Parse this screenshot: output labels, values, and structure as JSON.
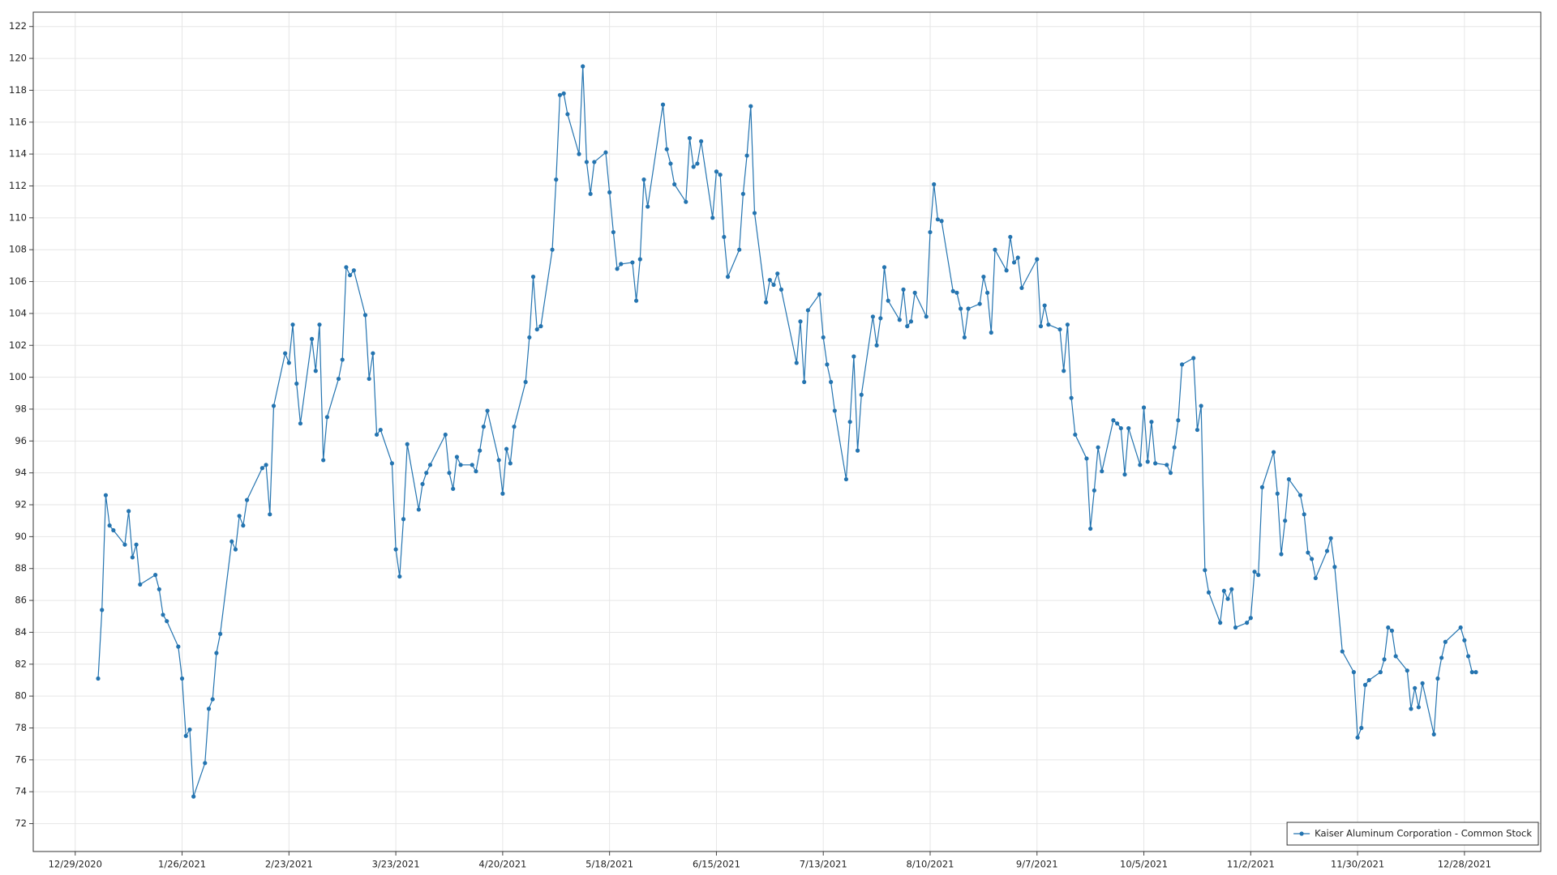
{
  "chart_data": {
    "type": "line",
    "x": [
      "1/4/2021",
      "1/5/2021",
      "1/6/2021",
      "1/7/2021",
      "1/8/2021",
      "1/11/2021",
      "1/12/2021",
      "1/13/2021",
      "1/14/2021",
      "1/15/2021",
      "1/19/2021",
      "1/20/2021",
      "1/21/2021",
      "1/22/2021",
      "1/25/2021",
      "1/26/2021",
      "1/27/2021",
      "1/28/2021",
      "1/29/2021",
      "2/1/2021",
      "2/2/2021",
      "2/3/2021",
      "2/4/2021",
      "2/5/2021",
      "2/8/2021",
      "2/9/2021",
      "2/10/2021",
      "2/11/2021",
      "2/12/2021",
      "2/16/2021",
      "2/17/2021",
      "2/18/2021",
      "2/19/2021",
      "2/22/2021",
      "2/23/2021",
      "2/24/2021",
      "2/25/2021",
      "2/26/2021",
      "3/1/2021",
      "3/2/2021",
      "3/3/2021",
      "3/4/2021",
      "3/5/2021",
      "3/8/2021",
      "3/9/2021",
      "3/10/2021",
      "3/11/2021",
      "3/12/2021",
      "3/15/2021",
      "3/16/2021",
      "3/17/2021",
      "3/18/2021",
      "3/19/2021",
      "3/22/2021",
      "3/23/2021",
      "3/24/2021",
      "3/25/2021",
      "3/26/2021",
      "3/29/2021",
      "3/30/2021",
      "3/31/2021",
      "4/1/2021",
      "4/5/2021",
      "4/6/2021",
      "4/7/2021",
      "4/8/2021",
      "4/9/2021",
      "4/12/2021",
      "4/13/2021",
      "4/14/2021",
      "4/15/2021",
      "4/16/2021",
      "4/19/2021",
      "4/20/2021",
      "4/21/2021",
      "4/22/2021",
      "4/23/2021",
      "4/26/2021",
      "4/27/2021",
      "4/28/2021",
      "4/29/2021",
      "4/30/2021",
      "5/3/2021",
      "5/4/2021",
      "5/5/2021",
      "5/6/2021",
      "5/7/2021",
      "5/10/2021",
      "5/11/2021",
      "5/12/2021",
      "5/13/2021",
      "5/14/2021",
      "5/17/2021",
      "5/18/2021",
      "5/19/2021",
      "5/20/2021",
      "5/21/2021",
      "5/24/2021",
      "5/25/2021",
      "5/26/2021",
      "5/27/2021",
      "5/28/2021",
      "6/1/2021",
      "6/2/2021",
      "6/3/2021",
      "6/4/2021",
      "6/7/2021",
      "6/8/2021",
      "6/9/2021",
      "6/10/2021",
      "6/11/2021",
      "6/14/2021",
      "6/15/2021",
      "6/16/2021",
      "6/17/2021",
      "6/18/2021",
      "6/21/2021",
      "6/22/2021",
      "6/23/2021",
      "6/24/2021",
      "6/25/2021",
      "6/28/2021",
      "6/29/2021",
      "6/30/2021",
      "7/1/2021",
      "7/2/2021",
      "7/6/2021",
      "7/7/2021",
      "7/8/2021",
      "7/9/2021",
      "7/12/2021",
      "7/13/2021",
      "7/14/2021",
      "7/15/2021",
      "7/16/2021",
      "7/19/2021",
      "7/20/2021",
      "7/21/2021",
      "7/22/2021",
      "7/23/2021",
      "7/26/2021",
      "7/27/2021",
      "7/28/2021",
      "7/29/2021",
      "7/30/2021",
      "8/2/2021",
      "8/3/2021",
      "8/4/2021",
      "8/5/2021",
      "8/6/2021",
      "8/9/2021",
      "8/10/2021",
      "8/11/2021",
      "8/12/2021",
      "8/13/2021",
      "8/16/2021",
      "8/17/2021",
      "8/18/2021",
      "8/19/2021",
      "8/20/2021",
      "8/23/2021",
      "8/24/2021",
      "8/25/2021",
      "8/26/2021",
      "8/27/2021",
      "8/30/2021",
      "8/31/2021",
      "9/1/2021",
      "9/2/2021",
      "9/3/2021",
      "9/7/2021",
      "9/8/2021",
      "9/9/2021",
      "9/10/2021",
      "9/13/2021",
      "9/14/2021",
      "9/15/2021",
      "9/16/2021",
      "9/17/2021",
      "9/20/2021",
      "9/21/2021",
      "9/22/2021",
      "9/23/2021",
      "9/24/2021",
      "9/27/2021",
      "9/28/2021",
      "9/29/2021",
      "9/30/2021",
      "10/1/2021",
      "10/4/2021",
      "10/5/2021",
      "10/6/2021",
      "10/7/2021",
      "10/8/2021",
      "10/11/2021",
      "10/12/2021",
      "10/13/2021",
      "10/14/2021",
      "10/15/2021",
      "10/18/2021",
      "10/19/2021",
      "10/20/2021",
      "10/21/2021",
      "10/22/2021",
      "10/25/2021",
      "10/26/2021",
      "10/27/2021",
      "10/28/2021",
      "10/29/2021",
      "11/1/2021",
      "11/2/2021",
      "11/3/2021",
      "11/4/2021",
      "11/5/2021",
      "11/8/2021",
      "11/9/2021",
      "11/10/2021",
      "11/11/2021",
      "11/12/2021",
      "11/15/2021",
      "11/16/2021",
      "11/17/2021",
      "11/18/2021",
      "11/19/2021",
      "11/22/2021",
      "11/23/2021",
      "11/24/2021",
      "11/26/2021",
      "11/29/2021",
      "11/30/2021",
      "12/1/2021",
      "12/2/2021",
      "12/3/2021",
      "12/6/2021",
      "12/7/2021",
      "12/8/2021",
      "12/9/2021",
      "12/10/2021",
      "12/13/2021",
      "12/14/2021",
      "12/15/2021",
      "12/16/2021",
      "12/17/2021",
      "12/20/2021",
      "12/21/2021",
      "12/22/2021",
      "12/23/2021",
      "12/27/2021",
      "12/28/2021",
      "12/29/2021",
      "12/30/2021",
      "12/31/2021"
    ],
    "series": [
      {
        "name": "Kaiser Aluminum Corporation - Common Stock",
        "color": "#2474b0",
        "values": [
          81.1,
          85.4,
          92.6,
          90.7,
          90.4,
          89.5,
          91.6,
          88.7,
          89.5,
          87.0,
          87.6,
          86.7,
          85.1,
          84.7,
          83.1,
          81.1,
          77.5,
          77.9,
          73.7,
          75.8,
          79.2,
          79.8,
          82.7,
          83.9,
          89.7,
          89.2,
          91.3,
          90.7,
          92.3,
          94.3,
          94.5,
          91.4,
          98.2,
          101.5,
          100.9,
          103.3,
          99.6,
          97.1,
          102.4,
          100.4,
          103.3,
          94.8,
          97.5,
          99.9,
          101.1,
          106.9,
          106.4,
          106.7,
          103.9,
          99.9,
          101.5,
          96.4,
          96.7,
          94.6,
          89.2,
          87.5,
          91.1,
          95.8,
          91.7,
          93.3,
          94.0,
          94.5,
          96.4,
          94.0,
          93.0,
          95.0,
          94.5,
          94.5,
          94.1,
          95.4,
          96.9,
          97.9,
          94.8,
          92.7,
          95.5,
          94.6,
          96.9,
          99.7,
          102.5,
          106.3,
          103.0,
          103.2,
          108.0,
          112.4,
          117.7,
          117.8,
          116.5,
          114.0,
          119.5,
          113.5,
          111.5,
          113.5,
          114.1,
          111.6,
          109.1,
          106.8,
          107.1,
          107.2,
          104.8,
          107.4,
          112.4,
          110.7,
          117.1,
          114.3,
          113.4,
          112.1,
          111.0,
          115.0,
          113.2,
          113.4,
          114.8,
          110.0,
          112.9,
          112.7,
          108.8,
          106.3,
          108.0,
          111.5,
          113.9,
          117.0,
          110.3,
          104.7,
          106.1,
          105.8,
          106.5,
          105.5,
          100.9,
          103.5,
          99.7,
          104.2,
          105.2,
          102.5,
          100.8,
          99.7,
          97.9,
          93.6,
          97.2,
          101.3,
          95.4,
          98.9,
          103.8,
          102.0,
          103.7,
          106.9,
          104.8,
          103.6,
          105.5,
          103.2,
          103.5,
          105.3,
          103.8,
          109.1,
          112.1,
          109.9,
          109.8,
          105.4,
          105.3,
          104.3,
          102.5,
          104.3,
          104.6,
          106.3,
          105.3,
          102.8,
          108.0,
          106.7,
          108.8,
          107.2,
          107.5,
          105.6,
          107.4,
          103.2,
          104.5,
          103.3,
          103.0,
          100.4,
          103.3,
          98.7,
          96.4,
          94.9,
          90.5,
          92.9,
          95.6,
          94.1,
          97.3,
          97.1,
          96.8,
          93.9,
          96.8,
          94.5,
          98.1,
          94.7,
          97.2,
          94.6,
          94.5,
          94.0,
          95.6,
          97.3,
          100.8,
          101.2,
          96.7,
          98.2,
          87.9,
          86.5,
          84.6,
          86.6,
          86.1,
          86.7,
          84.3,
          84.6,
          84.9,
          87.8,
          87.6,
          93.1,
          95.3,
          92.7,
          88.9,
          91.0,
          93.6,
          92.6,
          91.4,
          89.0,
          88.6,
          87.4,
          89.1,
          89.9,
          88.1,
          82.8,
          81.5,
          77.4,
          78.0,
          80.7,
          81.0,
          81.5,
          82.3,
          84.3,
          84.1,
          82.5,
          81.6,
          79.2,
          80.5,
          79.3,
          80.8,
          77.6,
          81.1,
          82.4,
          83.4,
          84.3,
          83.5,
          82.5,
          81.5,
          81.5
        ]
      }
    ],
    "xlim": [
      "12/18/2020",
      "1/17/2022"
    ],
    "xticks": [
      "12/29/2020",
      "1/26/2021",
      "2/23/2021",
      "3/23/2021",
      "4/20/2021",
      "5/18/2021",
      "6/15/2021",
      "7/13/2021",
      "8/10/2021",
      "9/7/2021",
      "10/5/2021",
      "11/2/2021",
      "11/30/2021",
      "12/28/2021"
    ],
    "ylim": [
      70.25,
      122.9
    ],
    "yticks": [
      72,
      74,
      76,
      78,
      80,
      82,
      84,
      86,
      88,
      90,
      92,
      94,
      96,
      98,
      100,
      102,
      104,
      106,
      108,
      110,
      112,
      114,
      116,
      118,
      120,
      122
    ],
    "grid": true,
    "legend": "lower right",
    "markers": true
  }
}
